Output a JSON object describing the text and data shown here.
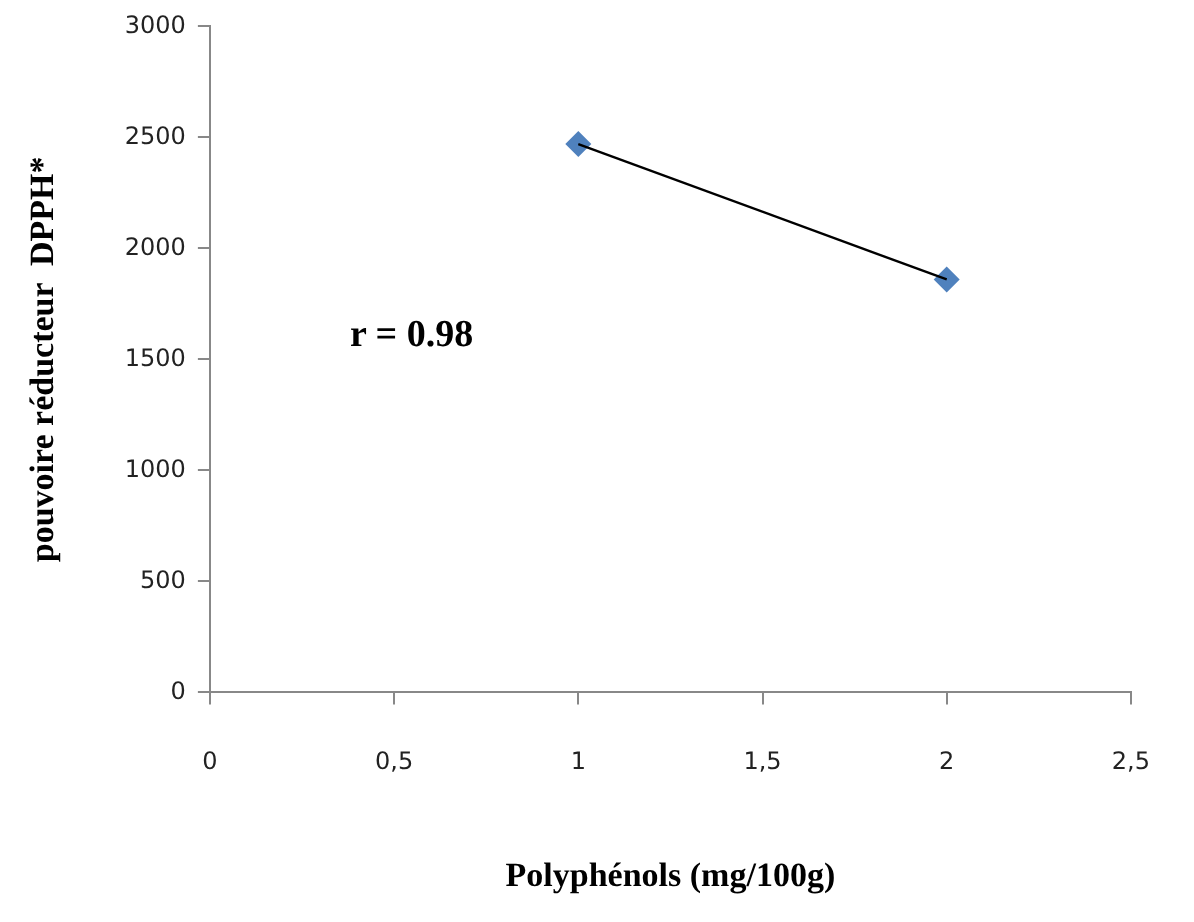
{
  "chart_data": {
    "type": "scatter",
    "xlabel": "Polyphénols (mg/100g)",
    "ylabel": "pouvoire réducteur  DPPH*",
    "annotations": [
      "r = 0.98"
    ],
    "xlim": [
      0,
      2.5
    ],
    "xticks": [
      0,
      {
        "value": 0.5,
        "label": "0,5"
      },
      1,
      {
        "value": 1.5,
        "label": "1,5"
      },
      2,
      {
        "value": 2.5,
        "label": "2,5"
      }
    ],
    "ylim": [
      0,
      3000
    ],
    "yticks": [
      0,
      500,
      1000,
      1500,
      2000,
      2500,
      3000
    ],
    "grid": false,
    "legend": false,
    "x": [
      1,
      2
    ],
    "series": [
      {
        "type": "scatter",
        "color": "#4f81bd",
        "marker": "diamond",
        "values": [
          2470,
          1860
        ]
      },
      {
        "type": "line",
        "color": "#000000",
        "marker": "none",
        "line_style": "solid",
        "values": [
          2470,
          1860
        ]
      }
    ]
  }
}
